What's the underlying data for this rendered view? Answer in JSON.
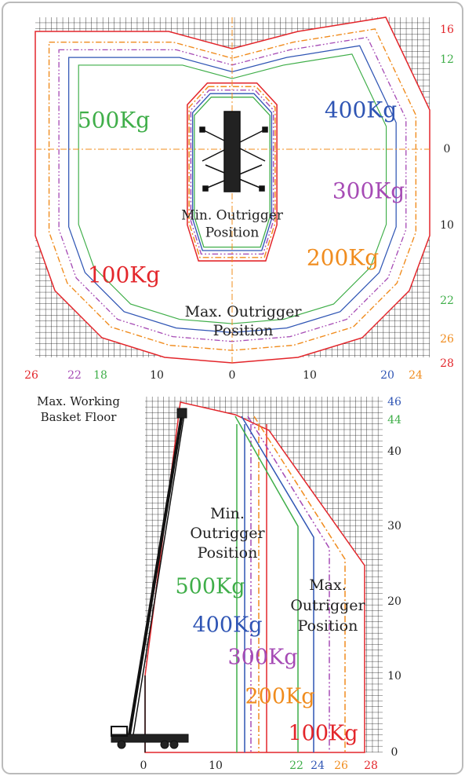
{
  "plan_view": {
    "right_labels": [
      {
        "text": "16",
        "color": "#e3262b"
      },
      {
        "text": "12",
        "color": "#3fae49"
      },
      {
        "text": "0",
        "color": "#222222"
      },
      {
        "text": "10",
        "color": "#222222"
      },
      {
        "text": "22",
        "color": "#3fae49"
      },
      {
        "text": "26",
        "color": "#f08c1e"
      },
      {
        "text": "28",
        "color": "#e3262b"
      }
    ],
    "bottom_labels": [
      {
        "text": "26",
        "color": "#e3262b"
      },
      {
        "text": "22",
        "color": "#a64bb5"
      },
      {
        "text": "18",
        "color": "#3fae49"
      },
      {
        "text": "10",
        "color": "#222222"
      },
      {
        "text": "0",
        "color": "#222222"
      },
      {
        "text": "10",
        "color": "#222222"
      },
      {
        "text": "20",
        "color": "#2f55b4"
      },
      {
        "text": "24",
        "color": "#f08c1e"
      }
    ],
    "load_labels": [
      {
        "text": "500Kg",
        "color": "#3fae49"
      },
      {
        "text": "400Kg",
        "color": "#2f55b4"
      },
      {
        "text": "300Kg",
        "color": "#a64bb5"
      },
      {
        "text": "200Kg",
        "color": "#f08c1e"
      },
      {
        "text": "100Kg",
        "color": "#e3262b"
      }
    ],
    "min_label": [
      "Min. Outrigger",
      "Position"
    ],
    "max_label": [
      "Max. Outrigger",
      "Position"
    ]
  },
  "side_view": {
    "right_labels": [
      {
        "text": "46",
        "color": "#2f55b4"
      },
      {
        "text": "44",
        "color": "#3fae49"
      },
      {
        "text": "40",
        "color": "#222222"
      },
      {
        "text": "30",
        "color": "#222222"
      },
      {
        "text": "20",
        "color": "#222222"
      },
      {
        "text": "10",
        "color": "#222222"
      },
      {
        "text": "0",
        "color": "#222222"
      }
    ],
    "bottom_labels": [
      {
        "text": "0",
        "color": "#222222"
      },
      {
        "text": "10",
        "color": "#222222"
      },
      {
        "text": "22",
        "color": "#3fae49"
      },
      {
        "text": "24",
        "color": "#2f55b4"
      },
      {
        "text": "26",
        "color": "#f08c1e"
      },
      {
        "text": "28",
        "color": "#e3262b"
      }
    ],
    "load_labels": [
      {
        "text": "500Kg",
        "color": "#3fae49"
      },
      {
        "text": "400Kg",
        "color": "#2f55b4"
      },
      {
        "text": "300Kg",
        "color": "#a64bb5"
      },
      {
        "text": "200Kg",
        "color": "#f08c1e"
      },
      {
        "text": "100Kg",
        "color": "#e3262b"
      }
    ],
    "min_label": [
      "Min.",
      "Outrigger",
      "Position"
    ],
    "max_label": [
      "Max.",
      "Outrigger",
      "Position"
    ],
    "basket_label": [
      "Max. Working",
      "Basket Floor"
    ]
  }
}
